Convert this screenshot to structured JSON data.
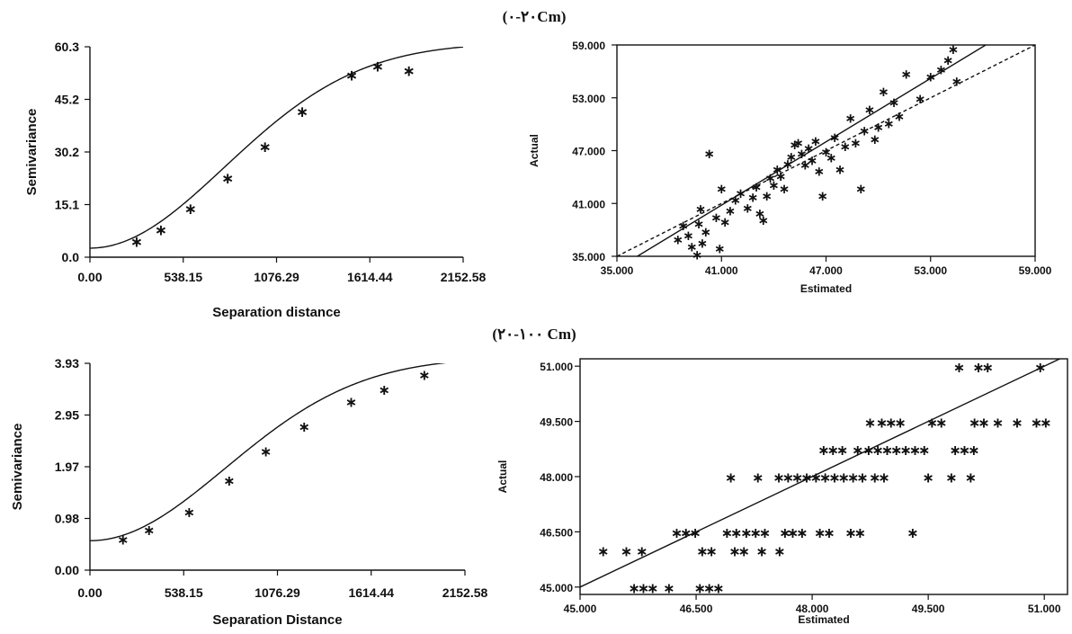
{
  "sections": [
    {
      "title": "(۰-۲۰Cm)"
    },
    {
      "title": "(۲۰-۱۰۰ Cm)"
    }
  ],
  "chart_data": [
    {
      "id": "sv1",
      "type": "scatter",
      "xlabel": "Separation distance",
      "ylabel": "Semivariance",
      "xlim": [
        0,
        2152.58
      ],
      "ylim": [
        0,
        60.3
      ],
      "xticks": [
        "0.00",
        "538.15",
        "1076.29",
        "1614.44",
        "2152.58"
      ],
      "yticks": [
        "0.0",
        "15.1",
        "30.2",
        "45.2",
        "60.3"
      ],
      "model_curve": {
        "type": "gaussian",
        "nugget": 2.6,
        "sill": 61.5,
        "range": 1900
      },
      "points": [
        {
          "x": 270,
          "y": 4.8
        },
        {
          "x": 410,
          "y": 8.2
        },
        {
          "x": 580,
          "y": 14.2
        },
        {
          "x": 795,
          "y": 23.0
        },
        {
          "x": 1010,
          "y": 32.0
        },
        {
          "x": 1225,
          "y": 42.0
        },
        {
          "x": 1510,
          "y": 52.5
        },
        {
          "x": 1660,
          "y": 55.0
        },
        {
          "x": 1840,
          "y": 53.8
        }
      ]
    },
    {
      "id": "cv1",
      "type": "scatter",
      "xlabel": "Estimated",
      "ylabel": "Actual",
      "xlim": [
        35,
        59
      ],
      "ylim": [
        35,
        59
      ],
      "xticks": [
        "35.000",
        "41.000",
        "47.000",
        "53.000",
        "59.000"
      ],
      "yticks": [
        "35.000",
        "41.000",
        "47.000",
        "53.000",
        "59.000"
      ],
      "regression_line": {
        "slope": 1.2,
        "intercept": -8.4
      },
      "identity_line": true,
      "points": [
        {
          "x": 38.5,
          "y": 37.0
        },
        {
          "x": 38.8,
          "y": 38.6
        },
        {
          "x": 39.1,
          "y": 37.5
        },
        {
          "x": 39.3,
          "y": 36.2
        },
        {
          "x": 39.6,
          "y": 35.3
        },
        {
          "x": 39.9,
          "y": 36.6
        },
        {
          "x": 40.1,
          "y": 37.9
        },
        {
          "x": 39.7,
          "y": 38.8
        },
        {
          "x": 39.8,
          "y": 40.5
        },
        {
          "x": 40.3,
          "y": 46.8
        },
        {
          "x": 40.7,
          "y": 39.5
        },
        {
          "x": 40.9,
          "y": 36.0
        },
        {
          "x": 41.2,
          "y": 39.0
        },
        {
          "x": 41.5,
          "y": 40.3
        },
        {
          "x": 41.8,
          "y": 41.5
        },
        {
          "x": 42.1,
          "y": 42.3
        },
        {
          "x": 41.0,
          "y": 42.8
        },
        {
          "x": 42.5,
          "y": 40.6
        },
        {
          "x": 42.8,
          "y": 41.8
        },
        {
          "x": 43.0,
          "y": 43.0
        },
        {
          "x": 43.2,
          "y": 40.0
        },
        {
          "x": 43.4,
          "y": 39.2
        },
        {
          "x": 43.6,
          "y": 42.0
        },
        {
          "x": 43.8,
          "y": 44.0
        },
        {
          "x": 44.0,
          "y": 43.2
        },
        {
          "x": 44.2,
          "y": 45.0
        },
        {
          "x": 44.4,
          "y": 44.2
        },
        {
          "x": 44.6,
          "y": 42.8
        },
        {
          "x": 44.8,
          "y": 45.6
        },
        {
          "x": 45.0,
          "y": 46.4
        },
        {
          "x": 45.2,
          "y": 47.8
        },
        {
          "x": 45.4,
          "y": 48.0
        },
        {
          "x": 45.6,
          "y": 46.8
        },
        {
          "x": 45.8,
          "y": 45.5
        },
        {
          "x": 46.0,
          "y": 47.4
        },
        {
          "x": 46.2,
          "y": 46.0
        },
        {
          "x": 46.4,
          "y": 48.2
        },
        {
          "x": 46.6,
          "y": 44.8
        },
        {
          "x": 46.8,
          "y": 42.0
        },
        {
          "x": 47.0,
          "y": 47.0
        },
        {
          "x": 47.3,
          "y": 46.3
        },
        {
          "x": 47.5,
          "y": 48.6
        },
        {
          "x": 47.8,
          "y": 45.0
        },
        {
          "x": 48.1,
          "y": 47.6
        },
        {
          "x": 48.4,
          "y": 50.8
        },
        {
          "x": 48.7,
          "y": 48.0
        },
        {
          "x": 49.0,
          "y": 42.8
        },
        {
          "x": 49.2,
          "y": 49.4
        },
        {
          "x": 49.5,
          "y": 51.8
        },
        {
          "x": 49.8,
          "y": 48.4
        },
        {
          "x": 50.0,
          "y": 49.8
        },
        {
          "x": 50.3,
          "y": 53.8
        },
        {
          "x": 50.6,
          "y": 50.2
        },
        {
          "x": 50.9,
          "y": 52.6
        },
        {
          "x": 51.2,
          "y": 51.0
        },
        {
          "x": 51.6,
          "y": 55.8
        },
        {
          "x": 52.4,
          "y": 53.0
        },
        {
          "x": 53.0,
          "y": 55.5
        },
        {
          "x": 53.6,
          "y": 56.3
        },
        {
          "x": 54.0,
          "y": 57.4
        },
        {
          "x": 54.3,
          "y": 58.6
        },
        {
          "x": 54.5,
          "y": 55.0
        }
      ]
    },
    {
      "id": "sv2",
      "type": "scatter",
      "xlabel": "Separation Distance",
      "ylabel": "Semivariance",
      "xlim": [
        0,
        2152.58
      ],
      "ylim": [
        0,
        3.93
      ],
      "xticks": [
        "0.00",
        "538.15",
        "1076.29",
        "1614.44",
        "2152.58"
      ],
      "yticks": [
        "0.00",
        "0.98",
        "1.97",
        "2.95",
        "3.93"
      ],
      "model_curve": {
        "type": "gaussian",
        "nugget": 0.56,
        "sill": 4.05,
        "range": 1900
      },
      "points": [
        {
          "x": 190,
          "y": 0.6
        },
        {
          "x": 340,
          "y": 0.78
        },
        {
          "x": 570,
          "y": 1.12
        },
        {
          "x": 800,
          "y": 1.72
        },
        {
          "x": 1010,
          "y": 2.28
        },
        {
          "x": 1230,
          "y": 2.75
        },
        {
          "x": 1500,
          "y": 3.22
        },
        {
          "x": 1690,
          "y": 3.45
        },
        {
          "x": 1920,
          "y": 3.73
        }
      ]
    },
    {
      "id": "cv2",
      "type": "scatter",
      "xlabel": "Estimated",
      "ylabel": "Actual",
      "xlim": [
        45,
        51.3
      ],
      "ylim": [
        44.8,
        51.2
      ],
      "xticks": [
        "45.000",
        "46.500",
        "48.000",
        "49.500",
        "51.000"
      ],
      "yticks": [
        "45.000",
        "46.500",
        "48.000",
        "49.500",
        "51.000"
      ],
      "regression_line": {
        "slope": 1.0,
        "intercept": 0.0
      },
      "points": [
        {
          "x": 45.3,
          "y": 46.0
        },
        {
          "x": 45.6,
          "y": 46.0
        },
        {
          "x": 45.8,
          "y": 46.0
        },
        {
          "x": 45.7,
          "y": 45.0
        },
        {
          "x": 45.82,
          "y": 45.0
        },
        {
          "x": 45.94,
          "y": 45.0
        },
        {
          "x": 46.15,
          "y": 45.0
        },
        {
          "x": 46.55,
          "y": 45.0
        },
        {
          "x": 46.67,
          "y": 45.0
        },
        {
          "x": 46.79,
          "y": 45.0
        },
        {
          "x": 46.25,
          "y": 46.5
        },
        {
          "x": 46.37,
          "y": 46.5
        },
        {
          "x": 46.49,
          "y": 46.5
        },
        {
          "x": 46.58,
          "y": 46.0
        },
        {
          "x": 46.7,
          "y": 46.0
        },
        {
          "x": 46.9,
          "y": 46.5
        },
        {
          "x": 47.02,
          "y": 46.5
        },
        {
          "x": 46.95,
          "y": 48.0
        },
        {
          "x": 47.0,
          "y": 46.0
        },
        {
          "x": 47.12,
          "y": 46.0
        },
        {
          "x": 47.35,
          "y": 46.0
        },
        {
          "x": 47.58,
          "y": 46.0
        },
        {
          "x": 47.15,
          "y": 46.5
        },
        {
          "x": 47.27,
          "y": 46.5
        },
        {
          "x": 47.39,
          "y": 46.5
        },
        {
          "x": 47.65,
          "y": 46.5
        },
        {
          "x": 47.75,
          "y": 46.5
        },
        {
          "x": 47.87,
          "y": 46.5
        },
        {
          "x": 47.3,
          "y": 48.0
        },
        {
          "x": 47.57,
          "y": 48.0
        },
        {
          "x": 47.69,
          "y": 48.0
        },
        {
          "x": 47.81,
          "y": 48.0
        },
        {
          "x": 47.93,
          "y": 48.0
        },
        {
          "x": 48.1,
          "y": 46.5
        },
        {
          "x": 48.22,
          "y": 46.5
        },
        {
          "x": 48.5,
          "y": 46.5
        },
        {
          "x": 48.62,
          "y": 46.5
        },
        {
          "x": 48.05,
          "y": 48.0
        },
        {
          "x": 48.17,
          "y": 48.0
        },
        {
          "x": 48.29,
          "y": 48.0
        },
        {
          "x": 48.41,
          "y": 48.0
        },
        {
          "x": 48.53,
          "y": 48.0
        },
        {
          "x": 48.65,
          "y": 48.0
        },
        {
          "x": 48.81,
          "y": 48.0
        },
        {
          "x": 48.93,
          "y": 48.0
        },
        {
          "x": 48.15,
          "y": 48.75
        },
        {
          "x": 48.27,
          "y": 48.75
        },
        {
          "x": 48.39,
          "y": 48.75
        },
        {
          "x": 48.59,
          "y": 48.75
        },
        {
          "x": 48.73,
          "y": 48.75
        },
        {
          "x": 48.85,
          "y": 48.75
        },
        {
          "x": 48.97,
          "y": 48.75
        },
        {
          "x": 49.09,
          "y": 48.75
        },
        {
          "x": 49.21,
          "y": 48.75
        },
        {
          "x": 49.33,
          "y": 48.75
        },
        {
          "x": 49.45,
          "y": 48.75
        },
        {
          "x": 48.75,
          "y": 49.5
        },
        {
          "x": 48.9,
          "y": 49.5
        },
        {
          "x": 49.02,
          "y": 49.5
        },
        {
          "x": 49.14,
          "y": 49.5
        },
        {
          "x": 49.3,
          "y": 46.5
        },
        {
          "x": 49.5,
          "y": 48.0
        },
        {
          "x": 49.8,
          "y": 48.0
        },
        {
          "x": 50.05,
          "y": 48.0
        },
        {
          "x": 49.55,
          "y": 49.5
        },
        {
          "x": 49.67,
          "y": 49.5
        },
        {
          "x": 49.85,
          "y": 48.75
        },
        {
          "x": 49.97,
          "y": 48.75
        },
        {
          "x": 50.09,
          "y": 48.75
        },
        {
          "x": 50.1,
          "y": 49.5
        },
        {
          "x": 50.22,
          "y": 49.5
        },
        {
          "x": 50.4,
          "y": 49.5
        },
        {
          "x": 50.65,
          "y": 49.5
        },
        {
          "x": 50.9,
          "y": 49.5
        },
        {
          "x": 51.02,
          "y": 49.5
        },
        {
          "x": 49.9,
          "y": 51.0
        },
        {
          "x": 50.15,
          "y": 51.0
        },
        {
          "x": 50.27,
          "y": 51.0
        },
        {
          "x": 50.95,
          "y": 51.0
        }
      ]
    }
  ]
}
